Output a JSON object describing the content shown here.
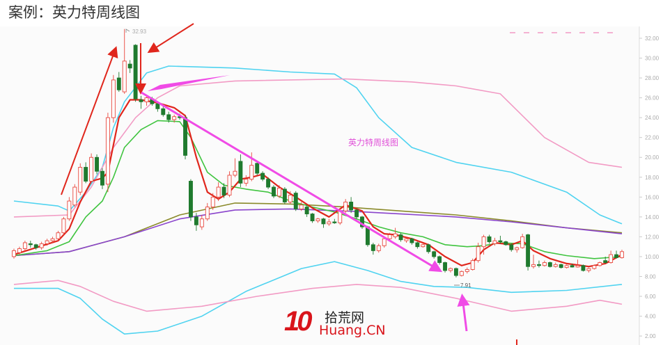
{
  "header": {
    "title": "案例：英力特周线图"
  },
  "logo": {
    "number": "10",
    "name": "拾荒网",
    "domain": "Huang.CN"
  },
  "chart_data": {
    "type": "candlestick",
    "annotation": "英力特周线图",
    "high_label": "32.93",
    "low_label": "7.91",
    "ylim": [
      1,
      33
    ],
    "yticks": [
      "32.00",
      "30.00",
      "28.00",
      "26.00",
      "24.00",
      "22.00",
      "20.00",
      "18.00",
      "16.00",
      "14.00",
      "12.00",
      "10.00",
      "8.00",
      "6.00",
      "4.00",
      "2.00"
    ],
    "colors": {
      "up": "#e8463c",
      "down": "#1f7a2e",
      "ma_short": "#e0261c",
      "ma_mid": "#3fc43f",
      "ma_long1": "#8a8a2a",
      "ma_long2": "#8a44cc",
      "band_outer": "#4fd3f0",
      "band_inner": "#f29ac4",
      "arrow_red": "#e0261c",
      "arrow_magenta": "#f04be6"
    },
    "ohlc": [
      [
        10.0,
        10.8,
        9.8,
        10.6
      ],
      [
        10.4,
        11.0,
        10.2,
        10.8
      ],
      [
        10.8,
        11.6,
        10.6,
        11.4
      ],
      [
        11.3,
        11.6,
        10.9,
        11.2
      ],
      [
        11.2,
        11.3,
        10.7,
        10.9
      ],
      [
        10.9,
        11.5,
        10.7,
        11.3
      ],
      [
        11.3,
        11.8,
        11.1,
        11.6
      ],
      [
        11.6,
        12.0,
        11.4,
        11.8
      ],
      [
        11.8,
        12.6,
        11.6,
        12.4
      ],
      [
        12.4,
        14.0,
        12.2,
        13.8
      ],
      [
        13.8,
        16.0,
        13.6,
        15.6
      ],
      [
        15.2,
        17.3,
        15.0,
        17.0
      ],
      [
        16.5,
        19.4,
        16.2,
        19.0
      ],
      [
        19.0,
        19.5,
        17.4,
        17.6
      ],
      [
        17.6,
        20.4,
        17.4,
        20.0
      ],
      [
        20.0,
        20.3,
        18.3,
        18.6
      ],
      [
        18.6,
        18.9,
        16.8,
        17.2
      ],
      [
        17.3,
        24.5,
        16.5,
        24.0
      ],
      [
        24.0,
        28.3,
        23.5,
        27.8
      ],
      [
        28.0,
        28.6,
        26.6,
        26.8
      ],
      [
        26.6,
        32.93,
        26.4,
        29.7
      ],
      [
        29.4,
        29.8,
        28.5,
        29.0
      ],
      [
        31.3,
        31.4,
        25.6,
        25.9
      ],
      [
        25.8,
        26.2,
        24.9,
        25.6
      ],
      [
        25.6,
        26.3,
        25.2,
        26.0
      ],
      [
        25.9,
        26.1,
        25.2,
        25.4
      ],
      [
        25.4,
        25.6,
        24.6,
        24.9
      ],
      [
        24.9,
        25.2,
        24.1,
        24.3
      ],
      [
        24.3,
        24.6,
        23.5,
        23.8
      ],
      [
        23.8,
        24.3,
        23.5,
        24.1
      ],
      [
        24.1,
        24.4,
        23.8,
        24.0
      ],
      [
        24.0,
        24.2,
        19.8,
        20.2
      ],
      [
        17.6,
        17.8,
        13.6,
        14.0
      ],
      [
        14.0,
        14.4,
        12.6,
        13.2
      ],
      [
        13.0,
        14.2,
        12.7,
        13.8
      ],
      [
        13.8,
        15.4,
        13.6,
        15.0
      ],
      [
        15.0,
        16.4,
        14.7,
        16.0
      ],
      [
        16.0,
        17.5,
        15.6,
        17.0
      ],
      [
        17.0,
        17.4,
        15.9,
        16.2
      ],
      [
        16.2,
        18.6,
        16.0,
        18.2
      ],
      [
        18.2,
        19.9,
        18.0,
        18.6
      ],
      [
        19.6,
        20.3,
        17.0,
        17.4
      ],
      [
        17.4,
        18.2,
        17.1,
        17.8
      ],
      [
        17.8,
        20.5,
        17.6,
        19.2
      ],
      [
        19.4,
        19.6,
        18.2,
        18.4
      ],
      [
        18.4,
        18.6,
        17.6,
        17.8
      ],
      [
        17.8,
        18.0,
        16.8,
        17.0
      ],
      [
        17.0,
        17.2,
        15.9,
        16.1
      ],
      [
        16.1,
        17.2,
        15.9,
        16.9
      ],
      [
        16.8,
        17.0,
        15.3,
        15.5
      ],
      [
        15.5,
        16.6,
        15.3,
        16.2
      ],
      [
        16.4,
        16.6,
        14.6,
        14.8
      ],
      [
        14.8,
        15.5,
        14.6,
        15.2
      ],
      [
        15.0,
        15.2,
        14.0,
        14.3
      ],
      [
        14.3,
        14.4,
        13.4,
        13.6
      ],
      [
        13.6,
        13.9,
        13.4,
        13.8
      ],
      [
        13.8,
        13.9,
        12.9,
        13.3
      ],
      [
        13.3,
        13.8,
        13.1,
        13.5
      ],
      [
        13.5,
        13.8,
        13.3,
        13.4
      ],
      [
        13.4,
        14.8,
        13.2,
        14.6
      ],
      [
        14.6,
        15.8,
        14.4,
        15.5
      ],
      [
        15.5,
        16.0,
        14.4,
        14.7
      ],
      [
        14.7,
        14.8,
        13.8,
        14.0
      ],
      [
        14.0,
        14.1,
        12.8,
        13.0
      ],
      [
        13.0,
        13.1,
        11.0,
        11.2
      ],
      [
        11.2,
        11.4,
        10.2,
        10.6
      ],
      [
        10.6,
        11.3,
        10.4,
        11.1
      ],
      [
        11.1,
        12.0,
        10.9,
        11.8
      ],
      [
        11.8,
        12.4,
        11.6,
        12.2
      ],
      [
        12.0,
        12.9,
        11.8,
        12.3
      ],
      [
        12.2,
        12.4,
        11.5,
        11.7
      ],
      [
        11.6,
        11.9,
        11.4,
        11.8
      ],
      [
        11.8,
        11.9,
        11.2,
        11.4
      ],
      [
        11.4,
        11.5,
        10.8,
        11.0
      ],
      [
        11.0,
        11.3,
        10.9,
        11.2
      ],
      [
        11.2,
        11.3,
        10.3,
        10.5
      ],
      [
        10.5,
        10.6,
        9.8,
        10.0
      ],
      [
        10.0,
        10.1,
        9.2,
        9.4
      ],
      [
        9.4,
        9.5,
        8.4,
        8.6
      ],
      [
        8.6,
        8.9,
        8.4,
        8.8
      ],
      [
        8.8,
        8.9,
        7.91,
        8.1
      ],
      [
        8.1,
        8.6,
        8.0,
        8.5
      ],
      [
        8.5,
        8.9,
        8.3,
        8.7
      ],
      [
        8.7,
        9.8,
        8.6,
        9.6
      ],
      [
        9.6,
        11.4,
        9.4,
        11.0
      ],
      [
        11.0,
        12.2,
        10.2,
        12.0
      ],
      [
        12.0,
        12.2,
        11.3,
        11.5
      ],
      [
        11.3,
        11.9,
        11.1,
        11.6
      ],
      [
        11.6,
        12.1,
        11.3,
        11.5
      ],
      [
        11.5,
        11.6,
        11.1,
        11.2
      ],
      [
        11.2,
        11.3,
        10.5,
        10.7
      ],
      [
        10.7,
        11.0,
        10.4,
        10.9
      ],
      [
        10.9,
        12.3,
        10.8,
        12.0
      ],
      [
        12.2,
        12.3,
        8.6,
        9.0
      ],
      [
        9.0,
        10.2,
        8.8,
        9.2
      ],
      [
        9.2,
        9.6,
        8.9,
        9.1
      ],
      [
        9.1,
        9.6,
        9.0,
        9.4
      ],
      [
        9.4,
        9.5,
        8.9,
        9.0
      ],
      [
        9.0,
        9.4,
        8.9,
        9.2
      ],
      [
        9.2,
        9.3,
        8.8,
        8.9
      ],
      [
        8.9,
        9.2,
        8.8,
        9.1
      ],
      [
        9.1,
        9.3,
        8.9,
        8.95
      ],
      [
        8.95,
        9.7,
        8.9,
        9.1
      ],
      [
        9.1,
        9.2,
        8.5,
        8.6
      ],
      [
        8.6,
        8.9,
        8.4,
        8.8
      ],
      [
        8.8,
        9.2,
        8.7,
        9.1
      ],
      [
        9.1,
        9.5,
        9.0,
        9.4
      ],
      [
        9.6,
        10.0,
        9.3,
        9.4
      ],
      [
        9.4,
        10.6,
        9.3,
        10.2
      ],
      [
        10.2,
        10.6,
        9.8,
        9.9
      ],
      [
        9.9,
        10.7,
        9.8,
        10.5
      ]
    ],
    "lines": [
      {
        "key": "band_outer_upper",
        "color": "#4fd3f0",
        "points": [
          [
            0,
            15.6
          ],
          [
            8,
            15.1
          ],
          [
            10,
            14.6
          ],
          [
            13,
            16.5
          ],
          [
            16,
            19
          ],
          [
            18,
            23
          ],
          [
            20,
            25.6
          ],
          [
            24,
            28.5
          ],
          [
            28,
            29.2
          ],
          [
            40,
            29
          ],
          [
            50,
            28.6
          ],
          [
            58,
            28.4
          ],
          [
            62,
            27
          ],
          [
            66,
            24
          ],
          [
            72,
            21
          ],
          [
            80,
            19.5
          ],
          [
            90,
            18.5
          ],
          [
            100,
            16.5
          ],
          [
            106,
            14.2
          ],
          [
            110,
            13.3
          ]
        ]
      },
      {
        "key": "band_outer_lower",
        "color": "#4fd3f0",
        "points": [
          [
            0,
            6.8
          ],
          [
            8,
            6.8
          ],
          [
            12,
            5.8
          ],
          [
            16,
            3.7
          ],
          [
            20,
            2.2
          ],
          [
            26,
            2.5
          ],
          [
            34,
            4
          ],
          [
            42,
            6.5
          ],
          [
            52,
            8.8
          ],
          [
            58,
            9.5
          ],
          [
            64,
            8.6
          ],
          [
            70,
            7.5
          ],
          [
            76,
            7.0
          ],
          [
            82,
            6.9
          ],
          [
            90,
            6.4
          ],
          [
            100,
            6.6
          ],
          [
            110,
            7.2
          ]
        ]
      },
      {
        "key": "band_inner_upper",
        "color": "#f29ac4",
        "points": [
          [
            0,
            14.0
          ],
          [
            10,
            14.2
          ],
          [
            14,
            17
          ],
          [
            18,
            21
          ],
          [
            22,
            24
          ],
          [
            26,
            26
          ],
          [
            30,
            27.2
          ],
          [
            40,
            27.7
          ],
          [
            60,
            27.9
          ],
          [
            72,
            27.6
          ],
          [
            80,
            27.2
          ],
          [
            88,
            26.4
          ],
          [
            96,
            22
          ],
          [
            104,
            19.5
          ],
          [
            110,
            19.0
          ]
        ]
      },
      {
        "key": "band_inner_lower",
        "color": "#f29ac4",
        "points": [
          [
            0,
            7.2
          ],
          [
            8,
            7.6
          ],
          [
            12,
            7.0
          ],
          [
            18,
            5.5
          ],
          [
            24,
            4.5
          ],
          [
            34,
            5
          ],
          [
            44,
            6
          ],
          [
            54,
            6.8
          ],
          [
            62,
            7.2
          ],
          [
            70,
            6.9
          ],
          [
            80,
            5.8
          ],
          [
            90,
            4.5
          ],
          [
            100,
            5.0
          ],
          [
            106,
            5.6
          ],
          [
            110,
            5.2
          ]
        ]
      },
      {
        "key": "ma_long1",
        "color": "#8a8a2a",
        "points": [
          [
            0,
            10.1
          ],
          [
            10,
            10.5
          ],
          [
            20,
            12
          ],
          [
            30,
            14.2
          ],
          [
            40,
            15.4
          ],
          [
            50,
            15.3
          ],
          [
            60,
            15.0
          ],
          [
            70,
            14.6
          ],
          [
            80,
            14.2
          ],
          [
            90,
            13.6
          ],
          [
            100,
            12.9
          ],
          [
            110,
            12.4
          ]
        ]
      },
      {
        "key": "ma_long2",
        "color": "#8a44cc",
        "points": [
          [
            0,
            10.1
          ],
          [
            10,
            10.5
          ],
          [
            20,
            12
          ],
          [
            30,
            13.8
          ],
          [
            40,
            14.7
          ],
          [
            50,
            14.8
          ],
          [
            60,
            14.6
          ],
          [
            70,
            14.3
          ],
          [
            80,
            14.0
          ],
          [
            90,
            13.5
          ],
          [
            100,
            12.9
          ],
          [
            110,
            12.3
          ]
        ]
      },
      {
        "key": "ma_mid",
        "color": "#3fc43f",
        "points": [
          [
            0,
            10.1
          ],
          [
            6,
            10.6
          ],
          [
            10,
            11.5
          ],
          [
            13,
            14
          ],
          [
            16,
            15.6
          ],
          [
            18,
            18
          ],
          [
            20,
            21
          ],
          [
            23,
            22.8
          ],
          [
            26,
            23.7
          ],
          [
            30,
            23.6
          ],
          [
            32,
            22
          ],
          [
            35,
            18.5
          ],
          [
            38,
            17.2
          ],
          [
            42,
            16.8
          ],
          [
            46,
            16.5
          ],
          [
            50,
            15.6
          ],
          [
            54,
            15
          ],
          [
            58,
            14.5
          ],
          [
            62,
            13.8
          ],
          [
            66,
            13
          ],
          [
            70,
            12.4
          ],
          [
            74,
            12
          ],
          [
            78,
            11.2
          ],
          [
            82,
            11
          ],
          [
            85,
            11.1
          ],
          [
            88,
            11.4
          ],
          [
            92,
            11.3
          ],
          [
            96,
            10.5
          ],
          [
            100,
            10.1
          ],
          [
            105,
            9.8
          ],
          [
            110,
            10
          ]
        ]
      },
      {
        "key": "ma_short",
        "color": "#e0261c",
        "points": [
          [
            0,
            10.2
          ],
          [
            4,
            10.9
          ],
          [
            8,
            11.6
          ],
          [
            10,
            12.8
          ],
          [
            12,
            15.5
          ],
          [
            14,
            17.6
          ],
          [
            16,
            17.9
          ],
          [
            17,
            18.5
          ],
          [
            19,
            24
          ],
          [
            21,
            25.8
          ],
          [
            23,
            25.8
          ],
          [
            26,
            25.5
          ],
          [
            29,
            25
          ],
          [
            31,
            24.2
          ],
          [
            33,
            20
          ],
          [
            35,
            16.5
          ],
          [
            37,
            15.8
          ],
          [
            39,
            16.5
          ],
          [
            41,
            17.8
          ],
          [
            43,
            18
          ],
          [
            45,
            18.3
          ],
          [
            48,
            17
          ],
          [
            51,
            16
          ],
          [
            54,
            14.9
          ],
          [
            57,
            14
          ],
          [
            60,
            15.2
          ],
          [
            63,
            14.6
          ],
          [
            65,
            13
          ],
          [
            67,
            12.3
          ],
          [
            69,
            12.2
          ],
          [
            72,
            11.8
          ],
          [
            75,
            11.2
          ],
          [
            78,
            10
          ],
          [
            81,
            9.1
          ],
          [
            83,
            9.4
          ],
          [
            85,
            10.7
          ],
          [
            87,
            11.4
          ],
          [
            90,
            11.2
          ],
          [
            92,
            11.6
          ],
          [
            94,
            10.6
          ],
          [
            97,
            9.8
          ],
          [
            100,
            9.3
          ],
          [
            104,
            9.0
          ],
          [
            107,
            9.3
          ],
          [
            110,
            10.2
          ]
        ]
      }
    ]
  }
}
